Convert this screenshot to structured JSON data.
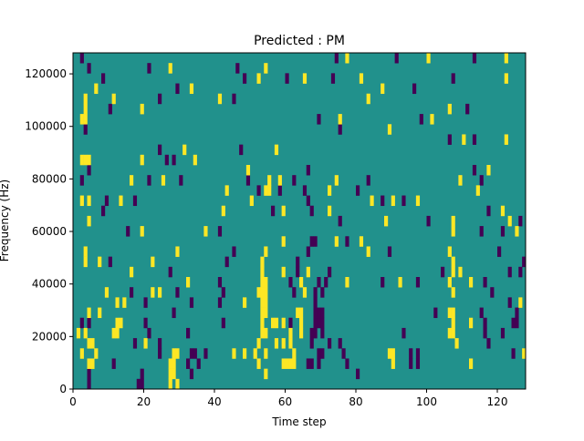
{
  "chart_data": {
    "type": "heatmap",
    "title": "Predicted : PM",
    "xlabel": "Time step",
    "ylabel": "Frequency (Hz)",
    "xlim": [
      0,
      128
    ],
    "ylim": [
      0,
      128000
    ],
    "n_cols": 128,
    "n_rows": 33,
    "xticks": [
      "0",
      "20",
      "40",
      "60",
      "80",
      "100",
      "120"
    ],
    "xtick_values": [
      0,
      20,
      40,
      60,
      80,
      100,
      120
    ],
    "yticks": [
      "0",
      "20000",
      "40000",
      "60000",
      "80000",
      "100000",
      "120000"
    ],
    "ytick_values": [
      0,
      20000,
      40000,
      60000,
      80000,
      100000,
      120000
    ],
    "colormap": "viridis",
    "colors": {
      "low": "#440154",
      "mid": "#21918c",
      "high": "#fde725"
    },
    "values": {
      "low": -1,
      "background": 0,
      "high": 1
    },
    "low_cells_by_row": {
      "32": [
        2,
        74,
        91,
        113
      ],
      "31": [
        4,
        21,
        46
      ],
      "30": [
        8,
        48,
        60,
        73,
        107
      ],
      "29": [
        29,
        96
      ],
      "28": [
        24,
        45
      ],
      "27": [
        10,
        111
      ],
      "26": [
        69,
        98
      ],
      "25": [
        3,
        75
      ],
      "24": [
        106,
        113
      ],
      "23": [
        24,
        47
      ],
      "22": [
        26,
        28
      ],
      "21": [
        4,
        66,
        113
      ],
      "20": [
        2,
        21,
        30,
        49,
        62,
        83,
        115
      ],
      "19": [
        52,
        58,
        65,
        80
      ],
      "18": [
        9,
        17,
        66,
        87,
        93
      ],
      "17": [
        8,
        56,
        67,
        117
      ],
      "16": [
        75,
        100,
        126
      ],
      "15": [
        15,
        41,
        115,
        121
      ],
      "14": [
        67,
        68,
        77
      ],
      "13": [
        45,
        66,
        89,
        120
      ],
      "12": [
        10,
        43,
        63,
        127
      ],
      "11": [
        27,
        63,
        72,
        104,
        123,
        126
      ],
      "10": [
        41,
        61,
        69,
        71,
        87,
        97,
        116
      ],
      "9": [
        16,
        29,
        42,
        62,
        68,
        70,
        118
      ],
      "8": [
        20,
        33,
        41,
        68,
        123
      ],
      "7": [
        28,
        68,
        69,
        70,
        102,
        115,
        125
      ],
      "6": [
        2,
        4,
        20,
        42,
        61,
        68,
        69,
        70,
        116,
        124,
        125
      ],
      "5": [
        21,
        32,
        67,
        68,
        70,
        93,
        116,
        121
      ],
      "4": [
        17,
        24,
        67,
        72,
        75,
        117
      ],
      "3": [
        24,
        33,
        34,
        37,
        69,
        70,
        76,
        95,
        97,
        124
      ],
      "2": [
        11,
        32,
        35,
        66,
        67,
        69,
        77,
        95,
        97
      ],
      "1": [
        4,
        19,
        33,
        80
      ],
      "0": [
        4,
        18,
        19
      ]
    },
    "high_cells_by_row": {
      "32": [
        77,
        100,
        122
      ],
      "31": [
        27,
        54
      ],
      "30": [
        52,
        65,
        81,
        122
      ],
      "29": [
        6,
        33,
        87
      ],
      "28": [
        3,
        11,
        41,
        83
      ],
      "27": [
        3,
        19,
        106
      ],
      "26": [
        2,
        3,
        75,
        101
      ],
      "25": [
        89
      ],
      "24": [
        110,
        122
      ],
      "23": [
        31,
        57
      ],
      "22": [
        2,
        3,
        4,
        19,
        34
      ],
      "21": [
        49,
        117
      ],
      "20": [
        16,
        25,
        55,
        58,
        74,
        109
      ],
      "19": [
        43,
        54,
        55,
        72,
        114
      ],
      "18": [
        2,
        4,
        13,
        50,
        84,
        90,
        97
      ],
      "17": [
        42,
        59,
        72,
        121
      ],
      "16": [
        4,
        88,
        107,
        123
      ],
      "15": [
        19,
        37,
        107,
        125
      ],
      "14": [
        59,
        74,
        81
      ],
      "13": [
        3,
        29,
        54,
        83,
        106
      ],
      "12": [
        3,
        7,
        22,
        53,
        107
      ],
      "11": [
        16,
        53,
        59,
        66,
        107,
        109
      ],
      "10": [
        32,
        53,
        54,
        64,
        77,
        92,
        106,
        112
      ],
      "9": [
        9,
        22,
        24,
        52,
        53,
        54,
        65,
        107
      ],
      "8": [
        12,
        14,
        48,
        53,
        54,
        126
      ],
      "7": [
        4,
        7,
        53,
        54,
        63,
        64,
        106,
        107
      ],
      "6": [
        12,
        13,
        53,
        56,
        57,
        59,
        64,
        107,
        112
      ],
      "5": [
        1,
        3,
        11,
        12,
        53,
        54,
        61,
        64,
        106,
        107
      ],
      "4": [
        4,
        5,
        20,
        52,
        57,
        59,
        61,
        108
      ],
      "3": [
        2,
        6,
        28,
        29,
        45,
        48,
        51,
        54,
        62,
        89,
        90,
        127
      ],
      "2": [
        4,
        5,
        27,
        28,
        52,
        59,
        60,
        61,
        62,
        90,
        112
      ],
      "1": [
        27,
        28,
        54
      ],
      "0": [
        27,
        29
      ]
    }
  }
}
